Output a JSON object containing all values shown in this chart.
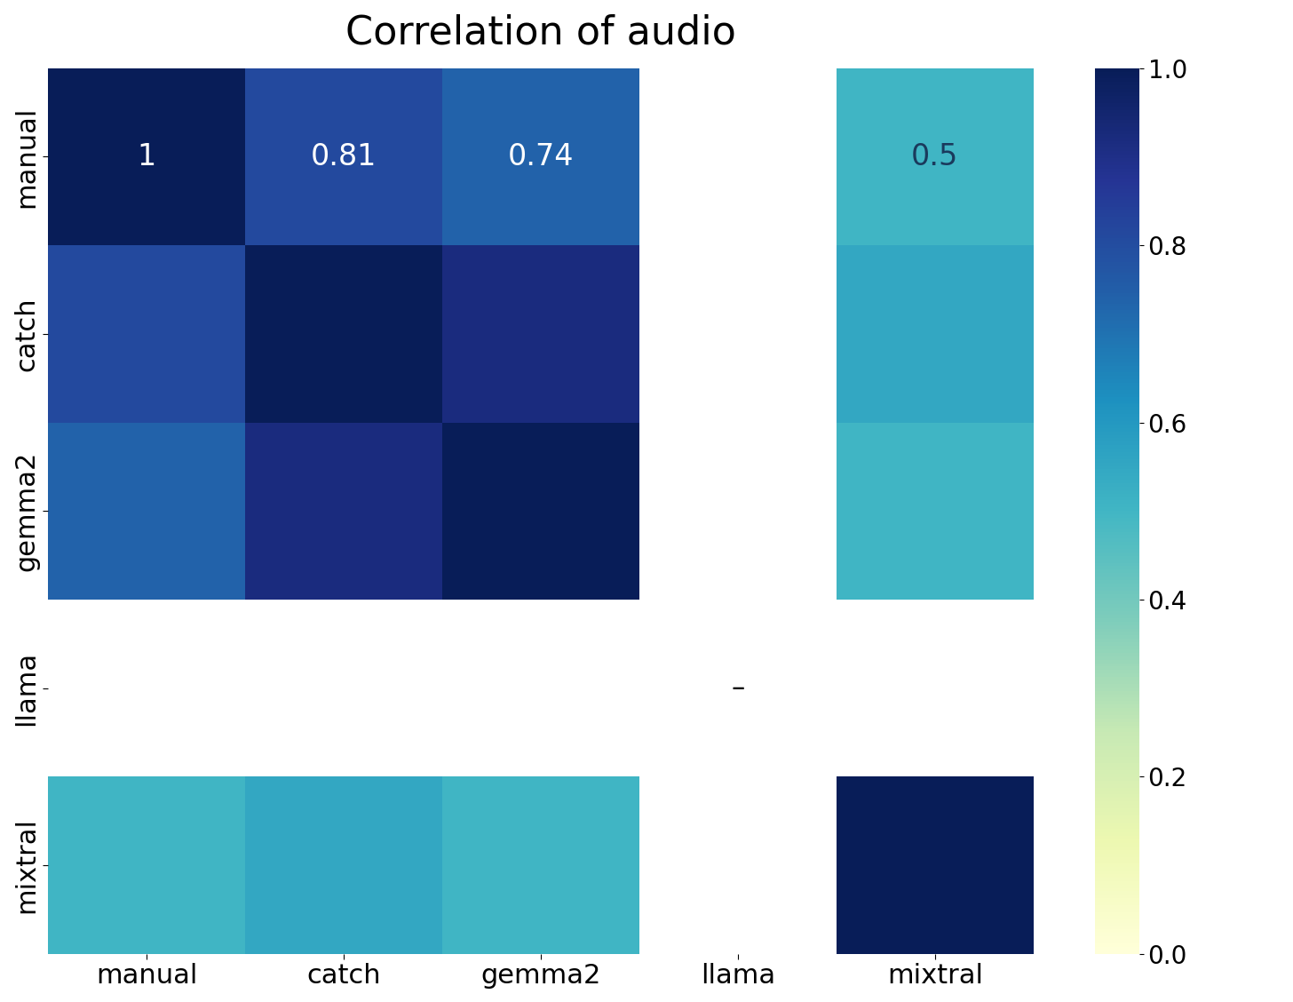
{
  "title": "Correlation of audio",
  "title_fontsize": 32,
  "labels": [
    "manual",
    "catch",
    "gemma2",
    "llama",
    "mixtral"
  ],
  "matrix": [
    [
      1.0,
      0.81,
      0.74,
      null,
      0.5
    ],
    [
      0.81,
      1.0,
      0.92,
      null,
      0.55
    ],
    [
      0.74,
      0.92,
      1.0,
      null,
      0.5
    ],
    [
      null,
      null,
      null,
      null,
      null
    ],
    [
      0.5,
      0.55,
      0.5,
      null,
      1.0
    ]
  ],
  "cmap": "YlGnBu",
  "vmin": 0.0,
  "vmax": 1.0,
  "colorbar_ticks": [
    0.0,
    0.2,
    0.4,
    0.6,
    0.8,
    1.0
  ],
  "text_color_threshold": 0.65,
  "text_dark_color": "#1a3a5c",
  "text_light_color": "white",
  "tick_fontsize": 22,
  "annot_fontsize": 24,
  "colorbar_fontsize": 20,
  "figsize": [
    14.56,
    11.28
  ],
  "dpi": 100
}
